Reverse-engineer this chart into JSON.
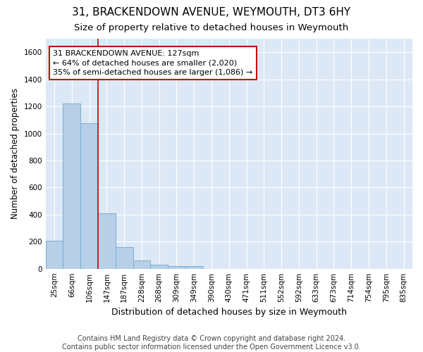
{
  "title": "31, BRACKENDOWN AVENUE, WEYMOUTH, DT3 6HY",
  "subtitle": "Size of property relative to detached houses in Weymouth",
  "xlabel": "Distribution of detached houses by size in Weymouth",
  "ylabel": "Number of detached properties",
  "categories": [
    "25sqm",
    "66sqm",
    "106sqm",
    "147sqm",
    "187sqm",
    "228sqm",
    "268sqm",
    "309sqm",
    "349sqm",
    "390sqm",
    "430sqm",
    "471sqm",
    "511sqm",
    "552sqm",
    "592sqm",
    "633sqm",
    "673sqm",
    "714sqm",
    "754sqm",
    "795sqm",
    "835sqm"
  ],
  "values": [
    205,
    1220,
    1075,
    410,
    160,
    60,
    30,
    20,
    20,
    0,
    0,
    0,
    0,
    0,
    0,
    0,
    0,
    0,
    0,
    0,
    0
  ],
  "bar_color": "#b8cfe8",
  "bar_edgecolor": "#7aadd4",
  "background_color": "#dce8f5",
  "grid_color": "#ffffff",
  "vline_x_index": 2.5,
  "vline_color": "#cc0000",
  "annotation_text": "31 BRACKENDOWN AVENUE: 127sqm\n← 64% of detached houses are smaller (2,020)\n35% of semi-detached houses are larger (1,086) →",
  "annotation_box_edgecolor": "#cc0000",
  "annotation_box_facecolor": "#ffffff",
  "ylim": [
    0,
    1700
  ],
  "yticks": [
    0,
    200,
    400,
    600,
    800,
    1000,
    1200,
    1400,
    1600
  ],
  "footer": "Contains HM Land Registry data © Crown copyright and database right 2024.\nContains public sector information licensed under the Open Government Licence v3.0.",
  "title_fontsize": 11,
  "subtitle_fontsize": 9.5,
  "xlabel_fontsize": 9,
  "ylabel_fontsize": 8.5,
  "tick_fontsize": 7.5,
  "footer_fontsize": 7,
  "annotation_fontsize": 8
}
